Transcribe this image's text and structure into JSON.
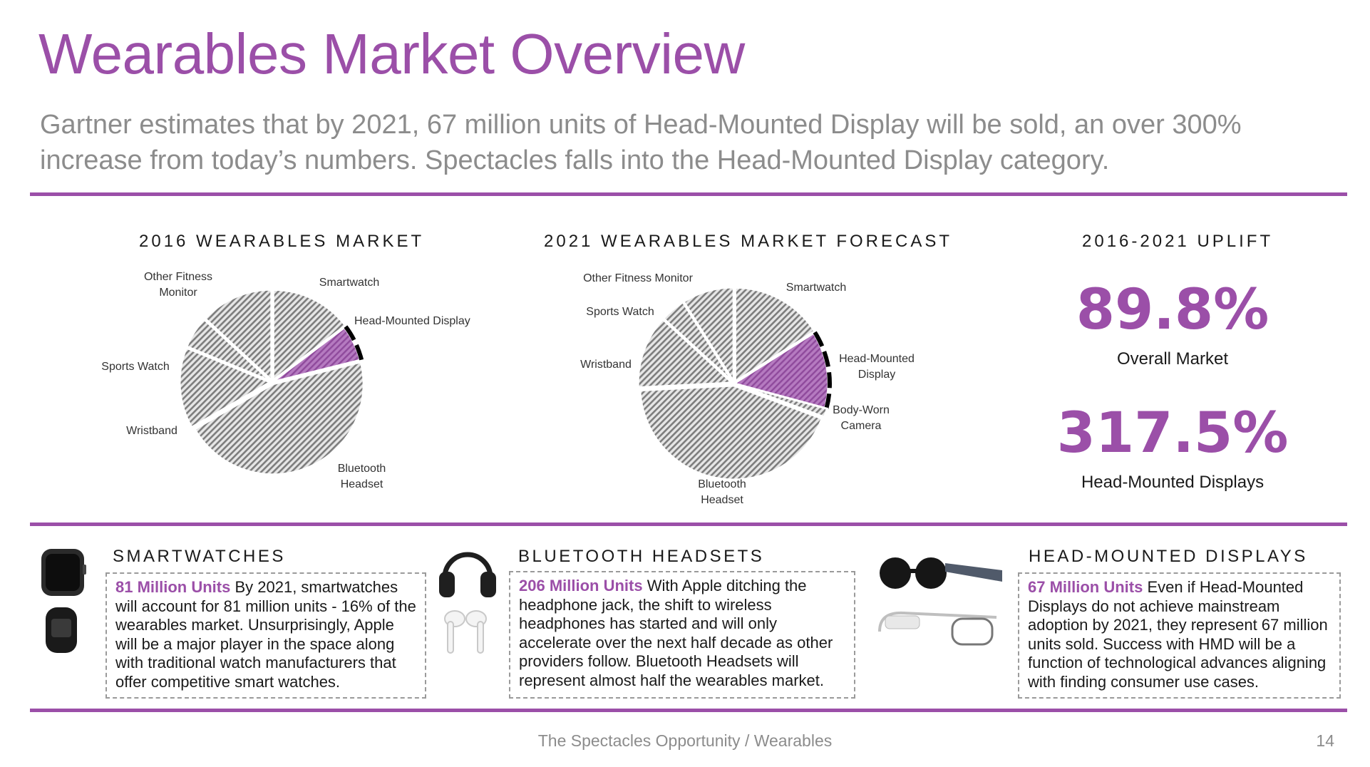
{
  "header": {
    "title": "Wearables Market Overview",
    "subtitle": "Gartner estimates that by 2021, 67 million units of Head-Mounted Display will be sold, an over 300% increase from today’s numbers. Spectacles falls into the Head-Mounted Display category."
  },
  "colors": {
    "accent": "#9b4fa8",
    "slice_gray": "#9a9a9a",
    "highlight_slice": "#a764b4"
  },
  "chart_data": [
    {
      "type": "pie",
      "title": "2016 WEARABLES MARKET",
      "labels": [
        "Smartwatch",
        "Head-Mounted Display",
        "Bluetooth Headset",
        "Wristband",
        "Sports Watch",
        "Other Fitness Monitor"
      ],
      "values": [
        14.7,
        6.4,
        45.6,
        14.5,
        5.7,
        13.1
      ],
      "highlight": "Head-Mounted Display"
    },
    {
      "type": "pie",
      "title": "2021 WEARABLES MARKET FORECAST",
      "labels": [
        "Smartwatch",
        "Head-Mounted Display",
        "Body-Worn Camera",
        "Bluetooth Headset",
        "Wristband",
        "Sports Watch",
        "Other Fitness Monitor"
      ],
      "values": [
        16.0,
        13.2,
        1.5,
        43.5,
        12.6,
        4.3,
        8.9
      ],
      "highlight": "Head-Mounted Display"
    }
  ],
  "uplift": {
    "title": "2016-2021 UPLIFT",
    "overall_value": "89.8%",
    "overall_label": "Overall Market",
    "hmd_value": "317.5%",
    "hmd_label": "Head-Mounted Displays"
  },
  "sections": {
    "smartwatches": {
      "heading": "SMARTWATCHES",
      "highlight": "81 Million Units",
      "body": "By 2021, smartwatches will account for 81 million units - 16% of the wearables market. Unsurprisingly, Apple will be a major player in the space along with traditional watch manufacturers that offer competitive smart watches."
    },
    "headsets": {
      "heading": "BLUETOOTH HEADSETS",
      "highlight": "206 Million Units",
      "body": "With Apple ditching the headphone jack, the shift to wireless headphones has started and will only accelerate over the next half decade as other providers follow. Bluetooth Headsets will represent almost half the wearables market."
    },
    "hmd": {
      "heading": "HEAD-MOUNTED DISPLAYS",
      "highlight": "67 Million Units",
      "body": "Even if Head-Mounted Displays do not achieve mainstream adoption by 2021, they represent 67 million units sold. Success with HMD will be a function of technological advances aligning with finding consumer use cases."
    }
  },
  "footer": {
    "text": "The Spectacles Opportunity / Wearables",
    "page": "14"
  }
}
